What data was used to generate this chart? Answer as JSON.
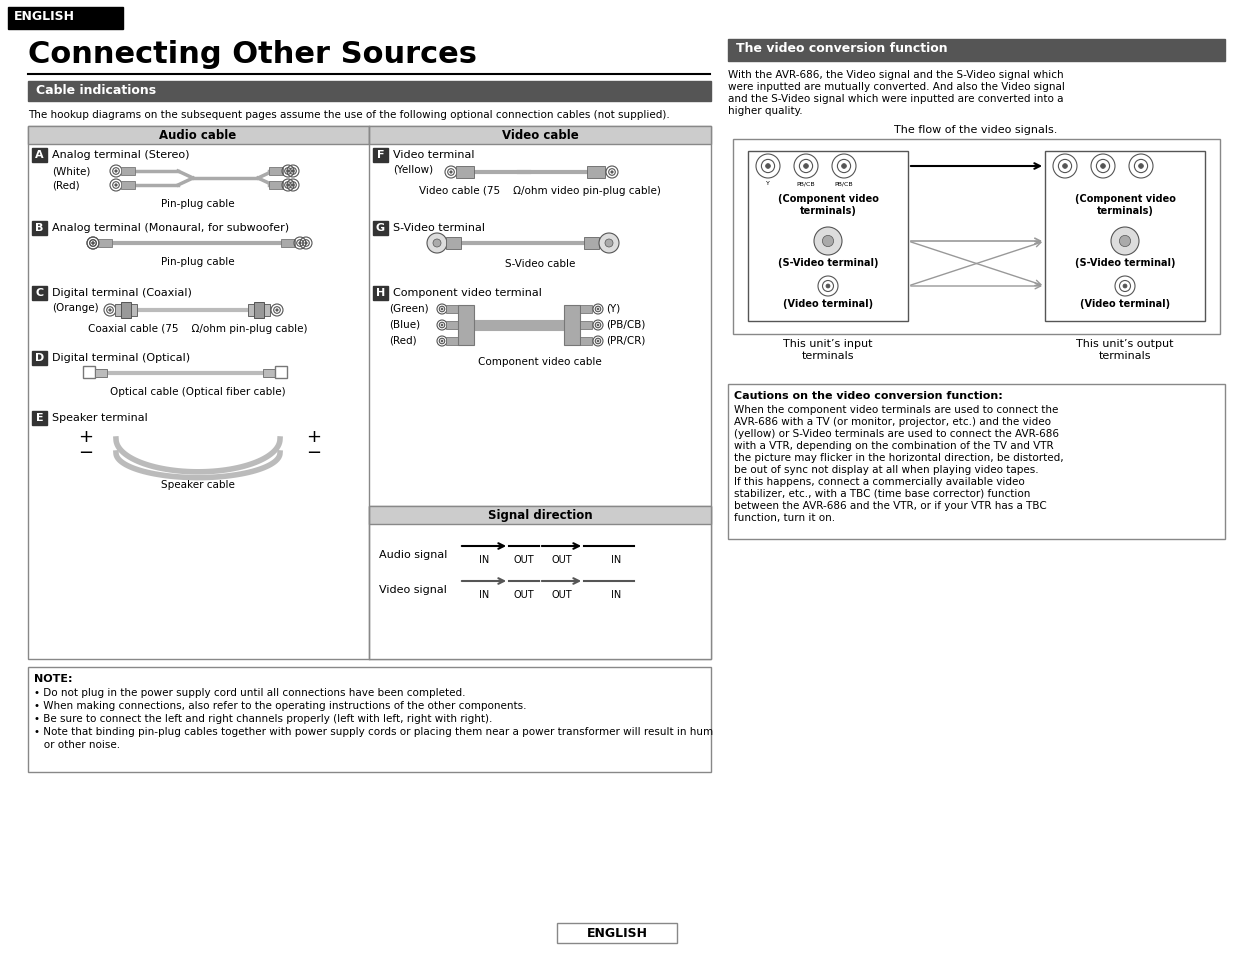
{
  "title": "Connecting Other Sources",
  "header_label": "ENGLISH",
  "section1_title": "Cable indications",
  "section2_title": "The video conversion function",
  "hookup_text": "The hookup diagrams on the subsequent pages assume the use of the following optional connection cables (not supplied).",
  "audio_cable_header": "Audio cable",
  "video_cable_header": "Video cable",
  "signal_direction_header": "Signal direction",
  "note_title": "NOTE:",
  "note_bullets": [
    "• Do not plug in the power supply cord until all connections have been completed.",
    "• When making connections, also refer to the operating instructions of the other components.",
    "• Be sure to connect the left and right channels properly (left with left, right with right).",
    "• Note that binding pin-plug cables together with power supply cords or placing them near a power transformer will result in hum",
    "   or other noise."
  ],
  "video_conversion_text": [
    "With the AVR-686, the Video signal and the S-Video signal which",
    "were inputted are mutually converted. And also the Video signal",
    "and the S-Video signal which were inputted are converted into a",
    "higher quality."
  ],
  "flow_text": "The flow of the video signals.",
  "input_label": "This unit’s input\nterminals",
  "output_label": "This unit’s output\nterminals",
  "caution_title": "Cautions on the video conversion function:",
  "caution_text": [
    "When the component video terminals are used to connect the",
    "AVR-686 with a TV (or monitor, projector, etc.) and the video",
    "(yellow) or S-Video terminals are used to connect the AVR-686",
    "with a VTR, depending on the combination of the TV and VTR",
    "the picture may flicker in the horizontal direction, be distorted,",
    "be out of sync not display at all when playing video tapes.",
    "If this happens, connect a commercially available video",
    "stabilizer, etc., with a TBC (time base corrector) function",
    "between the AVR-686 and the VTR, or if your VTR has a TBC",
    "function, turn it on."
  ],
  "english_footer": "ENGLISH"
}
